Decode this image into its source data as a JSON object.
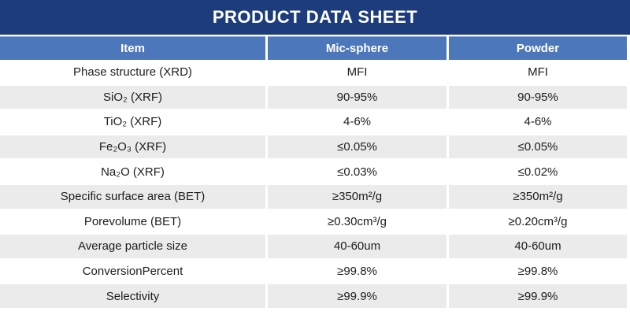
{
  "title": "PRODUCT DATA SHEET",
  "colors": {
    "title_bar": "#1d3c7c",
    "header_row": "#4d77bb",
    "stripe_row": "#ebebeb",
    "text": "#1d1d1d",
    "header_text": "#ffffff"
  },
  "table": {
    "columns": [
      "Item",
      "Mic-sphere",
      "Powder"
    ],
    "rows": [
      {
        "item": "Phase structure (XRD)",
        "mic": "MFI",
        "powder": "MFI"
      },
      {
        "item": "SiO₂ (XRF)",
        "mic": "90-95%",
        "powder": "90-95%"
      },
      {
        "item": "TiO₂ (XRF)",
        "mic": "4-6%",
        "powder": "4-6%"
      },
      {
        "item": "Fe₂O₃ (XRF)",
        "mic": "≤0.05%",
        "powder": "≤0.05%"
      },
      {
        "item": "Na₂O (XRF)",
        "mic": "≤0.03%",
        "powder": "≤0.02%"
      },
      {
        "item": "Specific surface area (BET)",
        "mic": "≥350m²/g",
        "powder": "≥350m²/g"
      },
      {
        "item": "Porevolume (BET)",
        "mic": "≥0.30cm³/g",
        "powder": "≥0.20cm³/g"
      },
      {
        "item": "Average particle size",
        "mic": "40-60um",
        "powder": "40-60um"
      },
      {
        "item": "ConversionPercent",
        "mic": "≥99.8%",
        "powder": "≥99.8%"
      },
      {
        "item": "Selectivity",
        "mic": "≥99.9%",
        "powder": "≥99.9%"
      }
    ]
  }
}
